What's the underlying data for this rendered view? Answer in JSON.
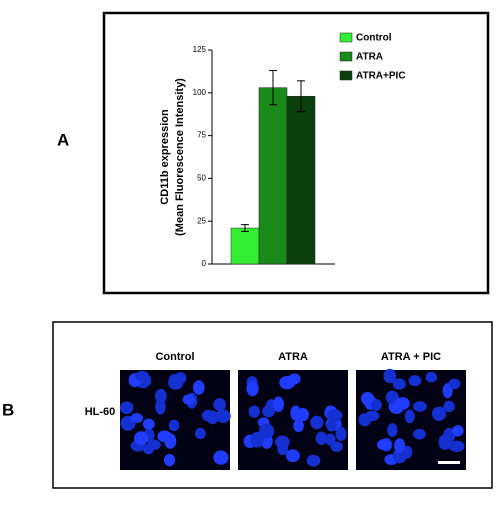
{
  "chart_data": {
    "type": "bar",
    "y_label": [
      "CD11b expression",
      "(Mean Fluorescence Intensity)"
    ],
    "series": [
      {
        "name": "Control",
        "color": "#33ee33",
        "values": [
          21
        ],
        "errors": [
          2
        ]
      },
      {
        "name": "ATRA",
        "color": "#1a8a1a",
        "values": [
          103
        ],
        "errors": [
          10
        ]
      },
      {
        "name": "ATRA+PIC",
        "color": "#0b3f0b",
        "values": [
          98
        ],
        "errors": [
          9
        ]
      }
    ],
    "ylim": [
      0,
      125
    ],
    "yticks": [
      0,
      25,
      50,
      75,
      100,
      125
    ]
  },
  "panel_labels": [
    "A",
    "B"
  ],
  "panel_b": {
    "row_label": "HL-60",
    "columns": [
      "Control",
      "ATRA",
      "ATRA + PIC"
    ]
  }
}
